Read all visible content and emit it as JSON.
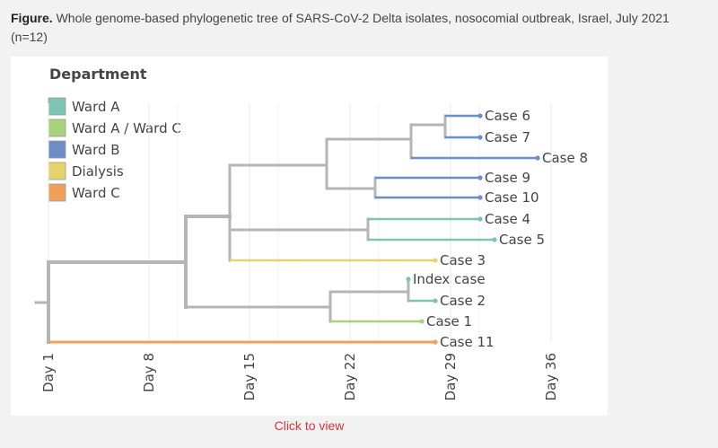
{
  "caption": {
    "lead": "Figure.",
    "text": "Whole genome-based phylogenetic tree of SARS-CoV-2 Delta isolates, nosocomial outbreak, Israel, July 2021 (n=12)"
  },
  "legend": {
    "title": "Department",
    "items": [
      {
        "label": "Ward A",
        "color": "#7ec4b4"
      },
      {
        "label": "Ward A / Ward C",
        "color": "#a8d27c"
      },
      {
        "label": "Ward B",
        "color": "#6b8ec8"
      },
      {
        "label": "Dialysis",
        "color": "#e6d36a"
      },
      {
        "label": "Ward C",
        "color": "#f0a05a"
      }
    ]
  },
  "axis": {
    "ticks": [
      "Day 1",
      "Day 8",
      "Day 15",
      "Day 22",
      "Day 29",
      "Day 36"
    ]
  },
  "tips": [
    {
      "label": "Case 6",
      "dept": "Ward B"
    },
    {
      "label": "Case 7",
      "dept": "Ward B"
    },
    {
      "label": "Case 8",
      "dept": "Ward B"
    },
    {
      "label": "Case 9",
      "dept": "Ward B"
    },
    {
      "label": "Case 10",
      "dept": "Ward B"
    },
    {
      "label": "Case 4",
      "dept": "Ward A"
    },
    {
      "label": "Case 5",
      "dept": "Ward A"
    },
    {
      "label": "Case 3",
      "dept": "Dialysis"
    },
    {
      "label": "Index case",
      "dept": "Ward A"
    },
    {
      "label": "Case 2",
      "dept": "Ward A"
    },
    {
      "label": "Case 1",
      "dept": "Ward A / Ward C"
    },
    {
      "label": "Case 11",
      "dept": "Ward C"
    }
  ],
  "link": {
    "label": "Click to view"
  },
  "colors": {
    "branch": "#b5b5b5",
    "link": "#d9343f"
  }
}
